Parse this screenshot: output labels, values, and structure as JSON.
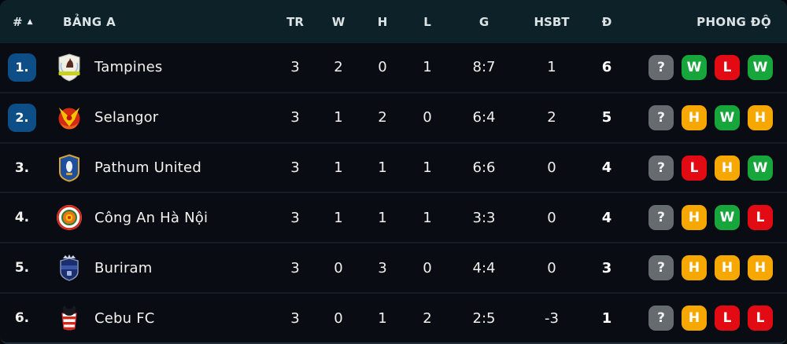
{
  "header": {
    "pos_label": "#",
    "sort_icon": "▲",
    "group_label": "BẢNG A",
    "columns": [
      "TR",
      "W",
      "H",
      "L",
      "G",
      "HSBT",
      "Đ"
    ],
    "form_label": "PHONG ĐỘ"
  },
  "colors": {
    "header_bg": "#0d2129",
    "row_bg": "#090d13",
    "position_badge_blue": "#0d4e87",
    "form_win_green": "#16a63c",
    "form_loss_red": "#e30b13",
    "form_draw_orange": "#f6a800",
    "form_unknown_gray": "#666b70"
  },
  "rows": [
    {
      "pos": "1.",
      "pos_highlight": true,
      "team": "Tampines",
      "logo": "tampines",
      "tr": "3",
      "w": "2",
      "h": "0",
      "l": "1",
      "g": "8:7",
      "hsbt": "1",
      "d": "6",
      "form": [
        {
          "label": "?",
          "type": "unknown"
        },
        {
          "label": "W",
          "type": "win"
        },
        {
          "label": "L",
          "type": "loss"
        },
        {
          "label": "W",
          "type": "win"
        }
      ]
    },
    {
      "pos": "2.",
      "pos_highlight": true,
      "team": "Selangor",
      "logo": "selangor",
      "tr": "3",
      "w": "1",
      "h": "2",
      "l": "0",
      "g": "6:4",
      "hsbt": "2",
      "d": "5",
      "form": [
        {
          "label": "?",
          "type": "unknown"
        },
        {
          "label": "H",
          "type": "draw"
        },
        {
          "label": "W",
          "type": "win"
        },
        {
          "label": "H",
          "type": "draw"
        }
      ]
    },
    {
      "pos": "3.",
      "pos_highlight": false,
      "team": "Pathum United",
      "logo": "pathum",
      "tr": "3",
      "w": "1",
      "h": "1",
      "l": "1",
      "g": "6:6",
      "hsbt": "0",
      "d": "4",
      "form": [
        {
          "label": "?",
          "type": "unknown"
        },
        {
          "label": "L",
          "type": "loss"
        },
        {
          "label": "H",
          "type": "draw"
        },
        {
          "label": "W",
          "type": "win"
        }
      ]
    },
    {
      "pos": "4.",
      "pos_highlight": false,
      "team": "Công An Hà Nội",
      "logo": "conganhanoi",
      "tr": "3",
      "w": "1",
      "h": "1",
      "l": "1",
      "g": "3:3",
      "hsbt": "0",
      "d": "4",
      "form": [
        {
          "label": "?",
          "type": "unknown"
        },
        {
          "label": "H",
          "type": "draw"
        },
        {
          "label": "W",
          "type": "win"
        },
        {
          "label": "L",
          "type": "loss"
        }
      ]
    },
    {
      "pos": "5.",
      "pos_highlight": false,
      "team": "Buriram",
      "logo": "buriram",
      "tr": "3",
      "w": "0",
      "h": "3",
      "l": "0",
      "g": "4:4",
      "hsbt": "0",
      "d": "3",
      "form": [
        {
          "label": "?",
          "type": "unknown"
        },
        {
          "label": "H",
          "type": "draw"
        },
        {
          "label": "H",
          "type": "draw"
        },
        {
          "label": "H",
          "type": "draw"
        }
      ]
    },
    {
      "pos": "6.",
      "pos_highlight": false,
      "team": "Cebu FC",
      "logo": "cebu",
      "tr": "3",
      "w": "0",
      "h": "1",
      "l": "2",
      "g": "2:5",
      "hsbt": "-3",
      "d": "1",
      "form": [
        {
          "label": "?",
          "type": "unknown"
        },
        {
          "label": "H",
          "type": "draw"
        },
        {
          "label": "L",
          "type": "loss"
        },
        {
          "label": "L",
          "type": "loss"
        }
      ]
    }
  ]
}
